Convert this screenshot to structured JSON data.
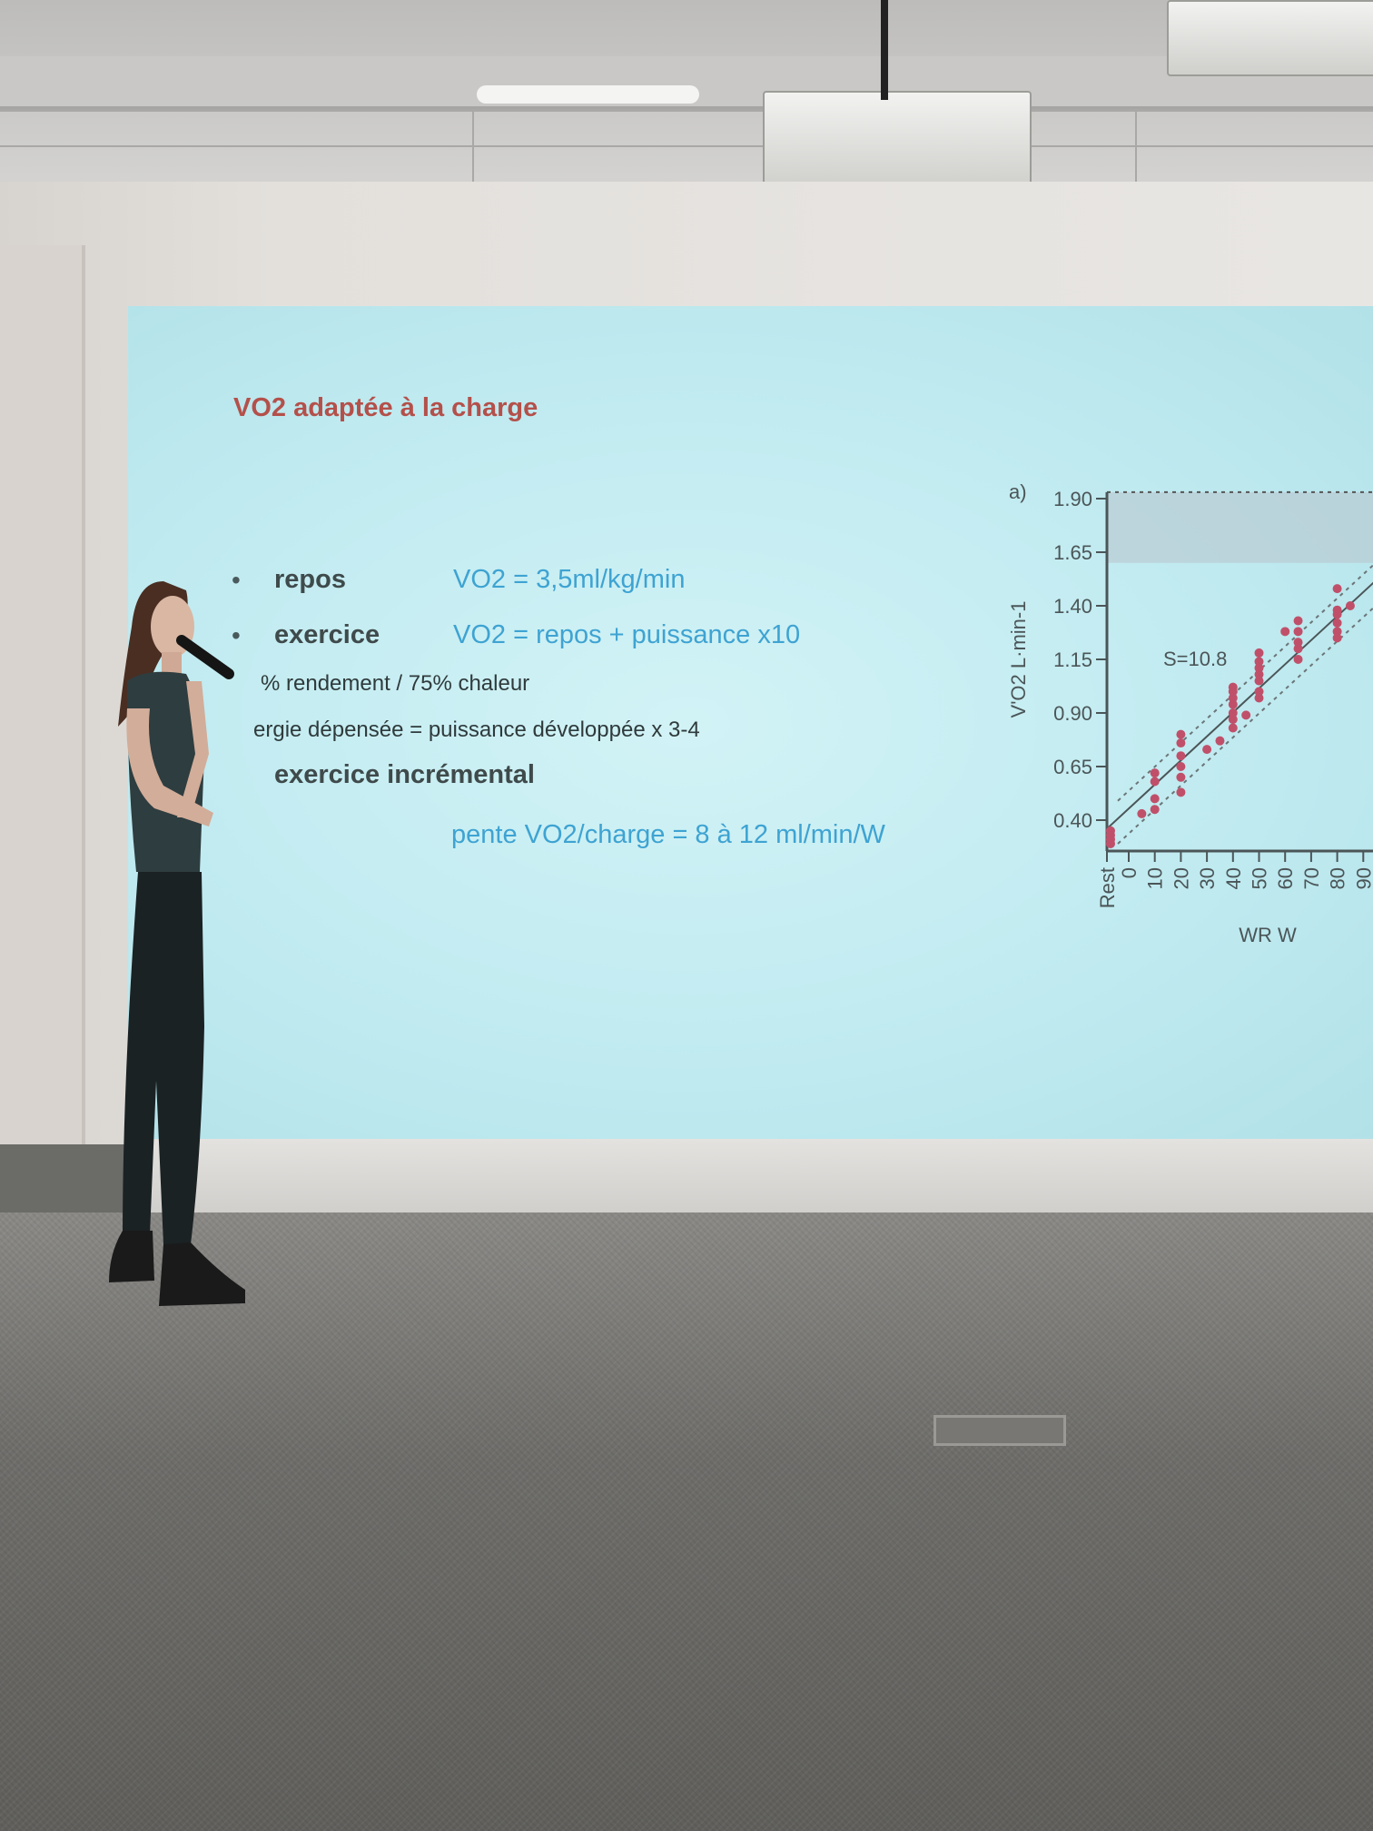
{
  "slide": {
    "title": "VO2 adaptée à la charge",
    "bullets": [
      {
        "label": "repos",
        "value": "VO2 = 3,5ml/kg/min"
      },
      {
        "label": "exercice",
        "value": "VO2 = repos + puissance x10"
      }
    ],
    "sub_lines": [
      "% rendement / 75% chaleur",
      "ergie dépensée = puissance développée x 3-4"
    ],
    "incremental": {
      "label": "exercice incrémental",
      "value": "pente VO2/charge = 8 à 12 ml/min/W"
    },
    "bullet_glyph": "•"
  },
  "colors": {
    "title": "#b4504a",
    "formula": "#3ea3d2",
    "points": "#c0506a",
    "screen": "#c4edf2"
  },
  "chart_data": {
    "type": "scatter",
    "panel_label": "a)",
    "ylabel": "V'O2 L·min-1",
    "xlabel": "WR W",
    "annotation": "S=10.8",
    "yticks": [
      "1.90",
      "1.65",
      "1.40",
      "1.15",
      "0.90",
      "0.65",
      "0.40"
    ],
    "xticks": [
      "Rest",
      "0",
      "10",
      "20",
      "30",
      "40",
      "50",
      "60",
      "70",
      "80",
      "90"
    ],
    "ylim": [
      0.26,
      1.93
    ],
    "shaded_band": [
      1.6,
      1.93
    ],
    "fit_line": {
      "from": [
        -8,
        0.36
      ],
      "to": [
        95,
        1.52
      ]
    },
    "band_offset": 0.1,
    "points": [
      [
        "Rest",
        0.29
      ],
      [
        "Rest",
        0.31
      ],
      [
        "Rest",
        0.33
      ],
      [
        "Rest",
        0.35
      ],
      [
        5,
        0.43
      ],
      [
        10,
        0.45
      ],
      [
        10,
        0.5
      ],
      [
        10,
        0.58
      ],
      [
        10,
        0.62
      ],
      [
        20,
        0.53
      ],
      [
        20,
        0.6
      ],
      [
        20,
        0.65
      ],
      [
        20,
        0.7
      ],
      [
        20,
        0.76
      ],
      [
        20,
        0.8
      ],
      [
        30,
        0.73
      ],
      [
        35,
        0.77
      ],
      [
        40,
        0.83
      ],
      [
        40,
        0.87
      ],
      [
        40,
        0.9
      ],
      [
        40,
        0.94
      ],
      [
        40,
        0.97
      ],
      [
        40,
        1.0
      ],
      [
        40,
        1.02
      ],
      [
        45,
        0.89
      ],
      [
        50,
        0.97
      ],
      [
        50,
        1.0
      ],
      [
        50,
        1.05
      ],
      [
        50,
        1.08
      ],
      [
        50,
        1.11
      ],
      [
        50,
        1.14
      ],
      [
        50,
        1.18
      ],
      [
        60,
        1.28
      ],
      [
        65,
        1.15
      ],
      [
        65,
        1.2
      ],
      [
        65,
        1.23
      ],
      [
        65,
        1.28
      ],
      [
        65,
        1.33
      ],
      [
        80,
        1.25
      ],
      [
        80,
        1.28
      ],
      [
        80,
        1.32
      ],
      [
        80,
        1.36
      ],
      [
        80,
        1.38
      ],
      [
        80,
        1.48
      ],
      [
        85,
        1.4
      ]
    ]
  }
}
